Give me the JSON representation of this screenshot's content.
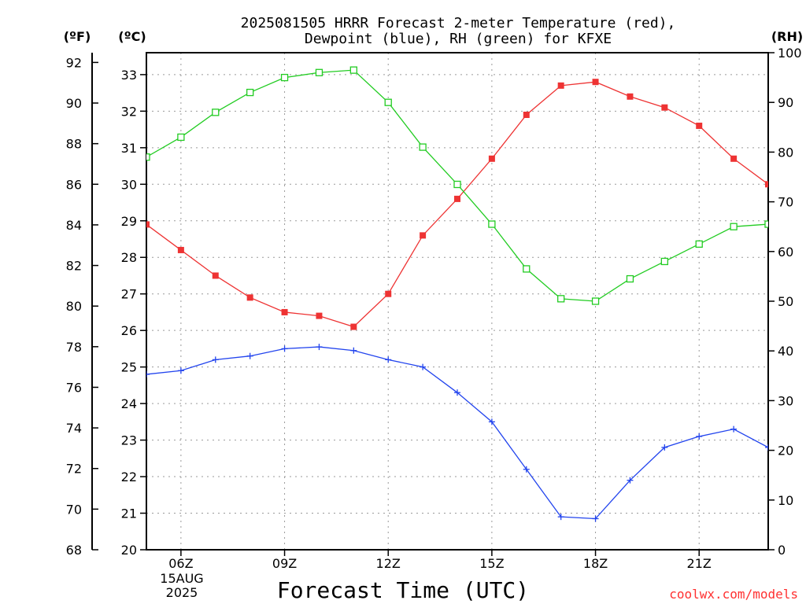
{
  "chart_data": {
    "type": "line",
    "title_line1": "2025081505 HRRR Forecast 2-meter Temperature (red),",
    "title_line2": "Dewpoint (blue), RH (green) for KFXE",
    "left_unit_f": "(ºF)",
    "left_unit_c": "(ºC)",
    "right_unit": "(RH)",
    "xlabel": "Forecast Time (UTC)",
    "credit": "coolwx.com/models",
    "date_label_1": "15AUG",
    "date_label_2": "2025",
    "x_hours": [
      5,
      6,
      7,
      8,
      9,
      10,
      11,
      12,
      13,
      14,
      15,
      16,
      17,
      18,
      19,
      20,
      21,
      22,
      23
    ],
    "x_ticks": [
      {
        "hour": 6,
        "label": "06Z"
      },
      {
        "hour": 9,
        "label": "09Z"
      },
      {
        "hour": 12,
        "label": "12Z"
      },
      {
        "hour": 15,
        "label": "15Z"
      },
      {
        "hour": 18,
        "label": "18Z"
      },
      {
        "hour": 21,
        "label": "21Z"
      }
    ],
    "xlim": [
      5,
      23
    ],
    "celsius_axis": {
      "range": [
        20,
        33.6
      ],
      "ticks": [
        20,
        21,
        22,
        23,
        24,
        25,
        26,
        27,
        28,
        29,
        30,
        31,
        32,
        33
      ]
    },
    "fahrenheit_axis": {
      "ticks": [
        68,
        70,
        72,
        74,
        76,
        78,
        80,
        82,
        84,
        86,
        88,
        90,
        92
      ]
    },
    "rh_axis": {
      "range": [
        0,
        100
      ],
      "ticks": [
        0,
        10,
        20,
        30,
        40,
        50,
        60,
        70,
        80,
        90,
        100
      ]
    },
    "series": [
      {
        "name": "Temperature",
        "axis": "C",
        "color": "#ee3333",
        "marker": "filled-square",
        "values": [
          28.9,
          28.2,
          27.5,
          26.9,
          26.5,
          26.4,
          26.1,
          27.0,
          28.6,
          29.6,
          30.7,
          31.9,
          32.7,
          32.8,
          32.4,
          32.1,
          31.6,
          30.7,
          30.0
        ]
      },
      {
        "name": "Dewpoint",
        "axis": "C",
        "color": "#2244ee",
        "marker": "plus",
        "values": [
          24.8,
          24.9,
          25.2,
          25.3,
          25.5,
          25.55,
          25.45,
          25.2,
          25.0,
          24.3,
          23.5,
          22.2,
          20.9,
          20.85,
          21.9,
          22.8,
          23.1,
          23.3,
          22.8
        ]
      },
      {
        "name": "RH",
        "axis": "RH",
        "color": "#22cc22",
        "marker": "open-square",
        "values": [
          79,
          83,
          88,
          92,
          95,
          96,
          96.5,
          90,
          81,
          73.5,
          65.5,
          56.5,
          50.5,
          50,
          54.5,
          58,
          61.5,
          65,
          65.5
        ]
      }
    ]
  }
}
